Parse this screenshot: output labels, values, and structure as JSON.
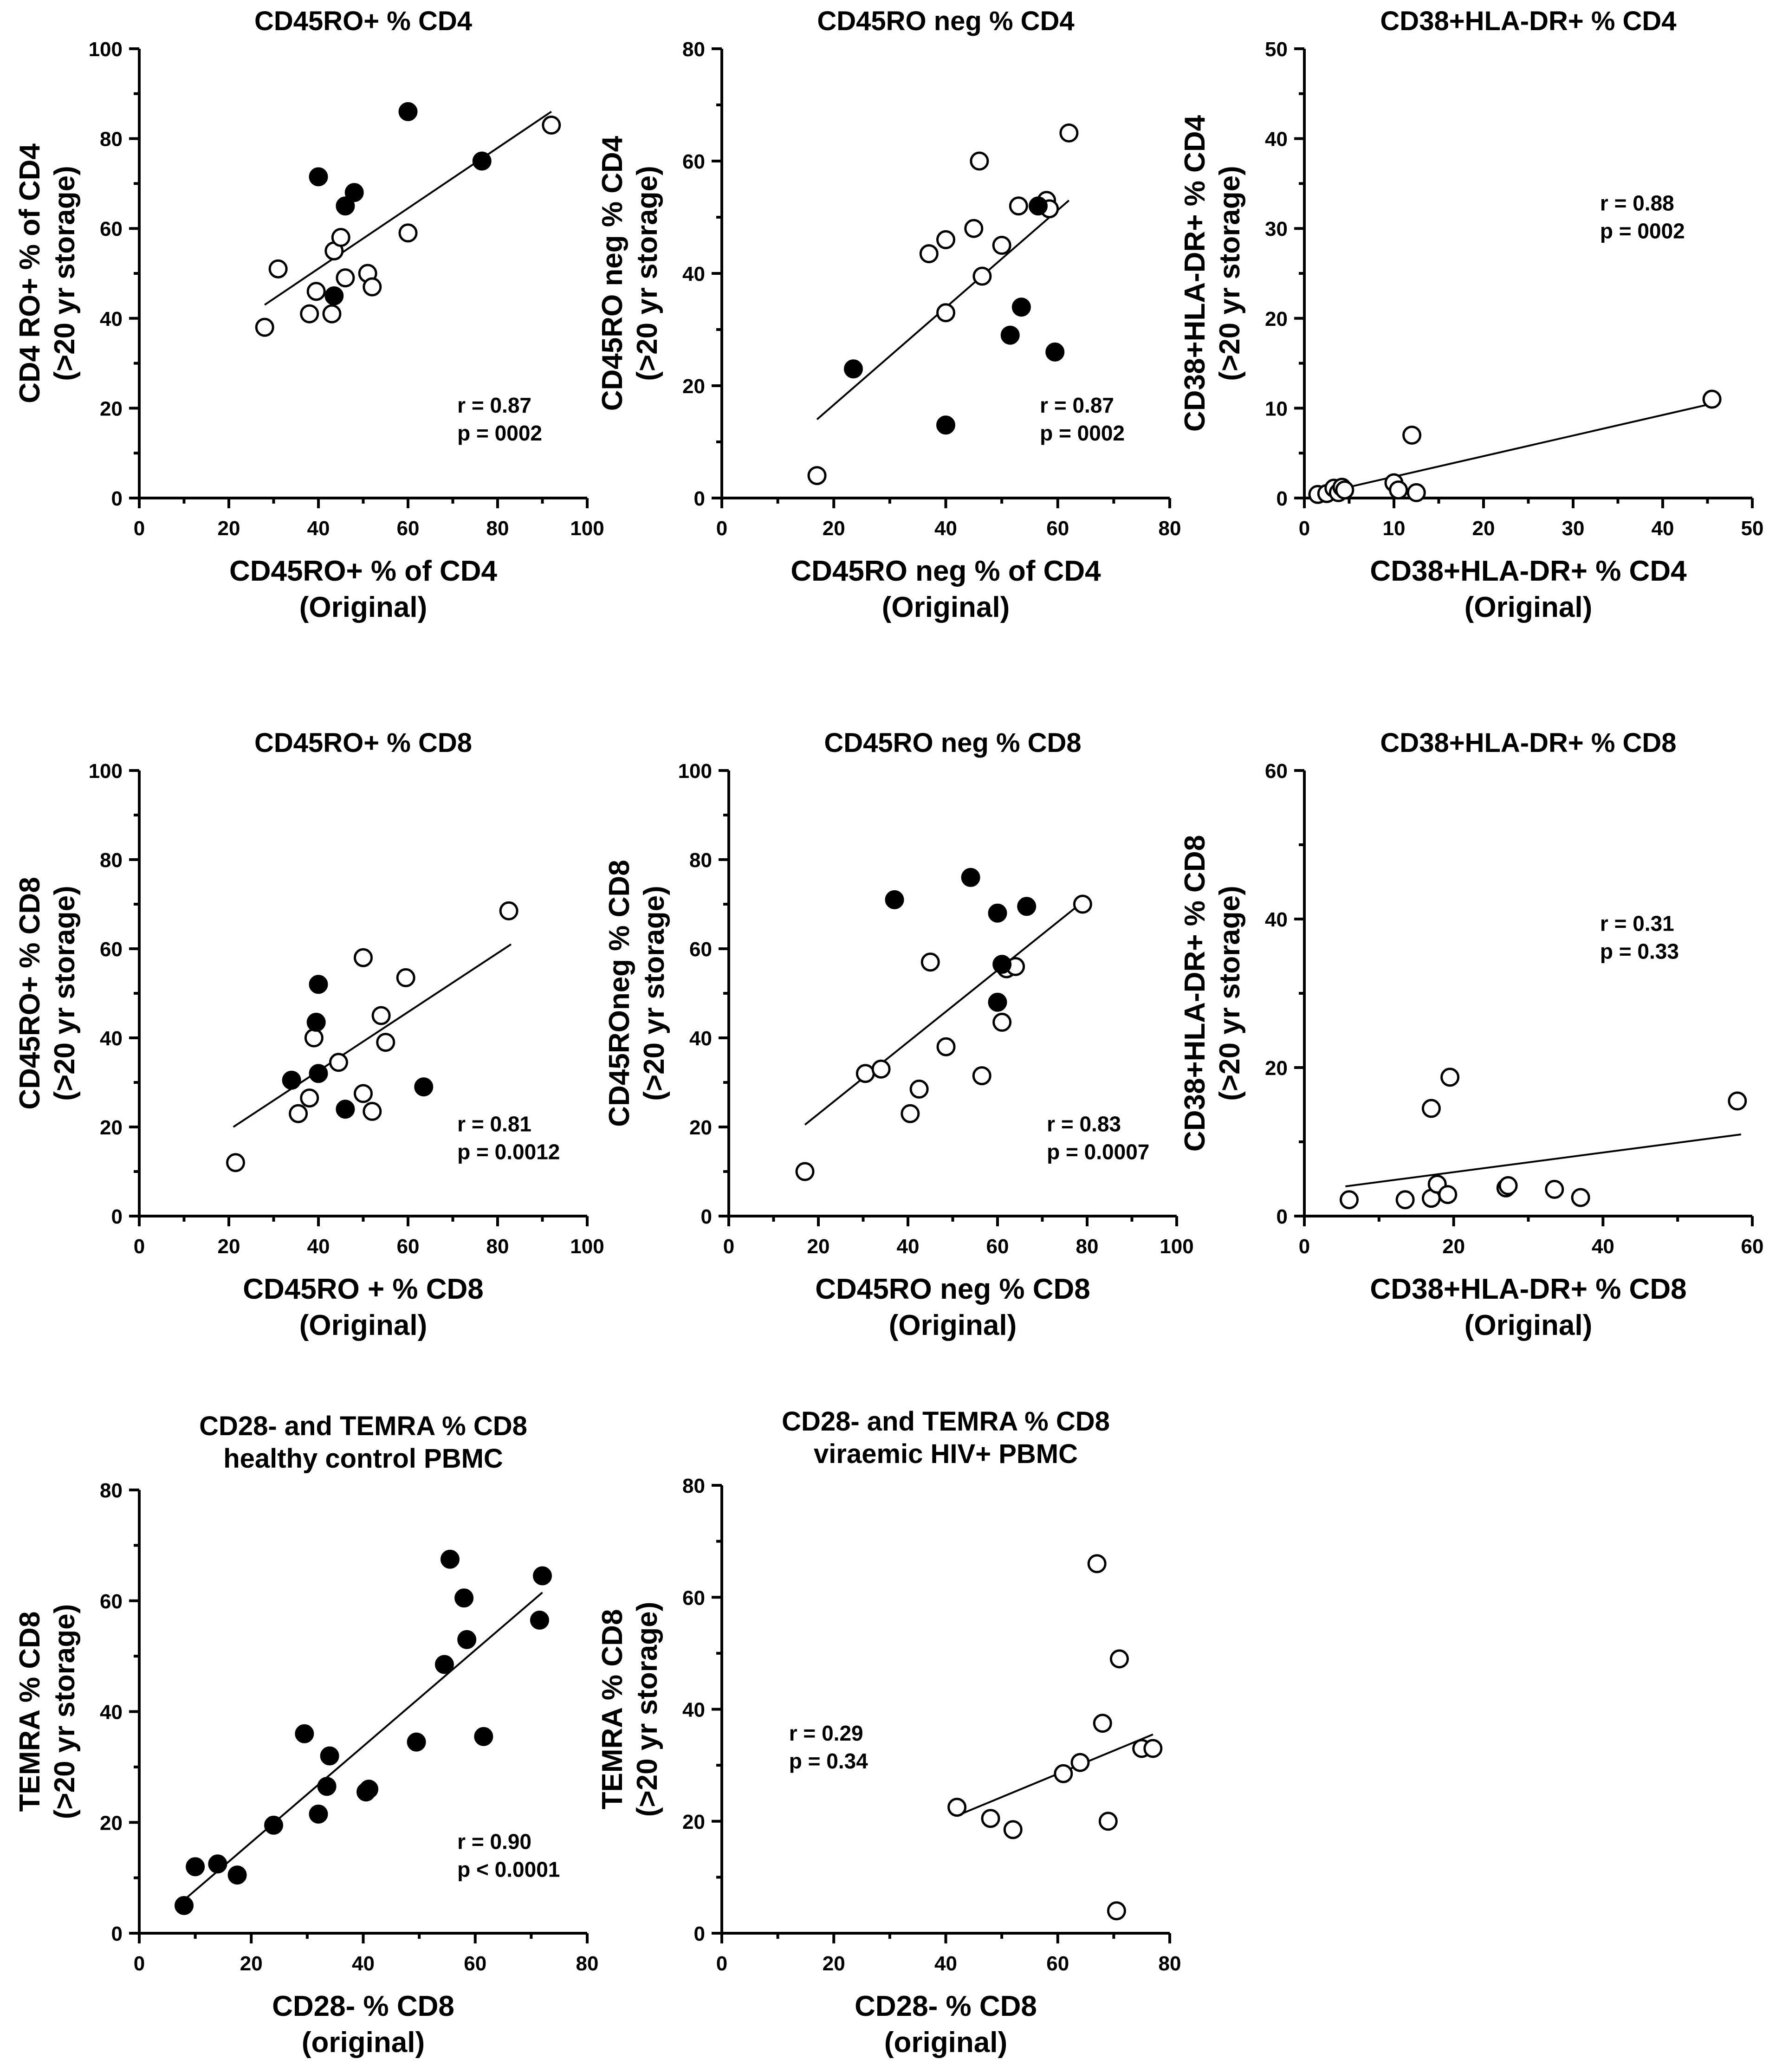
{
  "chart_data": [
    {
      "type": "scatter",
      "title": "CD45RO+ % CD4",
      "xlabel": [
        "CD45RO+ % of CD4",
        "(Original)"
      ],
      "ylabel": [
        "CD4 RO+ % of CD4",
        "(>20 yr storage)"
      ],
      "xlim": [
        0,
        100
      ],
      "ylim": [
        0,
        100
      ],
      "xticks": [
        0,
        20,
        40,
        60,
        80,
        100
      ],
      "yticks": [
        0,
        20,
        40,
        60,
        80,
        100
      ],
      "stats": [
        "r = 0.87",
        "p = 0002"
      ],
      "stats_position": "bottom-right",
      "fit": {
        "x": [
          28,
          92
        ],
        "y": [
          43,
          86
        ]
      },
      "points": [
        {
          "x": 28,
          "y": 38,
          "filled": false
        },
        {
          "x": 31,
          "y": 51,
          "filled": false
        },
        {
          "x": 38,
          "y": 41,
          "filled": false
        },
        {
          "x": 39.5,
          "y": 46,
          "filled": false
        },
        {
          "x": 43,
          "y": 41,
          "filled": false
        },
        {
          "x": 43.5,
          "y": 55,
          "filled": false
        },
        {
          "x": 45,
          "y": 58,
          "filled": false
        },
        {
          "x": 46,
          "y": 49,
          "filled": false
        },
        {
          "x": 51,
          "y": 50,
          "filled": false
        },
        {
          "x": 52,
          "y": 47,
          "filled": false
        },
        {
          "x": 60,
          "y": 59,
          "filled": false
        },
        {
          "x": 92,
          "y": 83,
          "filled": false
        },
        {
          "x": 40,
          "y": 71.5,
          "filled": true
        },
        {
          "x": 43.5,
          "y": 45,
          "filled": true
        },
        {
          "x": 46,
          "y": 65,
          "filled": true
        },
        {
          "x": 48,
          "y": 68,
          "filled": true
        },
        {
          "x": 60,
          "y": 86,
          "filled": true
        },
        {
          "x": 76.5,
          "y": 75,
          "filled": true
        }
      ]
    },
    {
      "type": "scatter",
      "title": "CD45RO neg % CD4",
      "xlabel": [
        "CD45RO neg % of CD4",
        "(Original)"
      ],
      "ylabel": [
        "CD45RO neg % CD4",
        "(>20 yr storage)"
      ],
      "xlim": [
        0,
        80
      ],
      "ylim": [
        0,
        80
      ],
      "xticks": [
        0,
        20,
        40,
        60,
        80
      ],
      "yticks": [
        0,
        20,
        40,
        60,
        80
      ],
      "stats": [
        "r = 0.87",
        "p = 0002"
      ],
      "stats_position": "bottom-right",
      "fit": {
        "x": [
          17,
          62
        ],
        "y": [
          14,
          53
        ]
      },
      "points": [
        {
          "x": 17,
          "y": 4,
          "filled": false
        },
        {
          "x": 37,
          "y": 43.5,
          "filled": false
        },
        {
          "x": 40,
          "y": 33,
          "filled": false
        },
        {
          "x": 40,
          "y": 46,
          "filled": false
        },
        {
          "x": 45,
          "y": 48,
          "filled": false
        },
        {
          "x": 46,
          "y": 60,
          "filled": false
        },
        {
          "x": 46.5,
          "y": 39.5,
          "filled": false
        },
        {
          "x": 50,
          "y": 45,
          "filled": false
        },
        {
          "x": 53,
          "y": 52,
          "filled": false
        },
        {
          "x": 58,
          "y": 53,
          "filled": false
        },
        {
          "x": 58.5,
          "y": 51.5,
          "filled": false
        },
        {
          "x": 62,
          "y": 65,
          "filled": false
        },
        {
          "x": 23.5,
          "y": 23,
          "filled": true
        },
        {
          "x": 40,
          "y": 13,
          "filled": true
        },
        {
          "x": 51.5,
          "y": 29,
          "filled": true
        },
        {
          "x": 53.5,
          "y": 34,
          "filled": true
        },
        {
          "x": 56.5,
          "y": 52,
          "filled": true
        },
        {
          "x": 59.5,
          "y": 26,
          "filled": true
        }
      ]
    },
    {
      "type": "scatter",
      "title": "CD38+HLA-DR+ % CD4",
      "xlabel": [
        "CD38+HLA-DR+ % CD4",
        "(Original)"
      ],
      "ylabel": [
        "CD38+HLA-DR+ % CD4",
        "(>20 yr storage)"
      ],
      "xlim": [
        0,
        50
      ],
      "ylim": [
        0,
        50
      ],
      "xticks": [
        0,
        10,
        20,
        30,
        40,
        50
      ],
      "yticks": [
        0,
        10,
        20,
        30,
        40,
        50
      ],
      "stats": [
        "r = 0.88",
        "p = 0002"
      ],
      "stats_position": "top-right",
      "fit": {
        "x": [
          0.5,
          45.5
        ],
        "y": [
          0.2,
          10.5
        ]
      },
      "points": [
        {
          "x": 1.5,
          "y": 0.4,
          "filled": false
        },
        {
          "x": 2.5,
          "y": 0.5,
          "filled": false
        },
        {
          "x": 3.3,
          "y": 1.1,
          "filled": false
        },
        {
          "x": 3.8,
          "y": 0.6,
          "filled": false
        },
        {
          "x": 4.2,
          "y": 1.2,
          "filled": false
        },
        {
          "x": 4.5,
          "y": 0.9,
          "filled": false
        },
        {
          "x": 10,
          "y": 1.7,
          "filled": false
        },
        {
          "x": 10.5,
          "y": 0.9,
          "filled": false
        },
        {
          "x": 12,
          "y": 7,
          "filled": false
        },
        {
          "x": 12.5,
          "y": 0.6,
          "filled": false
        },
        {
          "x": 45.5,
          "y": 11,
          "filled": false
        }
      ]
    },
    {
      "type": "scatter",
      "title": "CD45RO+ % CD8",
      "xlabel": [
        "CD45RO + % CD8",
        "(Original)"
      ],
      "ylabel": [
        "CD45RO+ % CD8",
        "(>20 yr storage)"
      ],
      "xlim": [
        0,
        100
      ],
      "ylim": [
        0,
        100
      ],
      "xticks": [
        0,
        20,
        40,
        60,
        80,
        100
      ],
      "yticks": [
        0,
        20,
        40,
        60,
        80,
        100
      ],
      "stats": [
        "r = 0.81",
        "p = 0.0012"
      ],
      "stats_position": "bottom-right",
      "fit": {
        "x": [
          21,
          83
        ],
        "y": [
          20,
          61
        ]
      },
      "points": [
        {
          "x": 21.5,
          "y": 12,
          "filled": false
        },
        {
          "x": 35.5,
          "y": 23,
          "filled": false
        },
        {
          "x": 38,
          "y": 26.5,
          "filled": false
        },
        {
          "x": 39,
          "y": 40,
          "filled": false
        },
        {
          "x": 44.5,
          "y": 34.5,
          "filled": false
        },
        {
          "x": 50,
          "y": 58,
          "filled": false
        },
        {
          "x": 50,
          "y": 27.5,
          "filled": false
        },
        {
          "x": 52,
          "y": 23.5,
          "filled": false
        },
        {
          "x": 54,
          "y": 45,
          "filled": false
        },
        {
          "x": 55,
          "y": 39,
          "filled": false
        },
        {
          "x": 59.5,
          "y": 53.5,
          "filled": false
        },
        {
          "x": 82.5,
          "y": 68.5,
          "filled": false
        },
        {
          "x": 34,
          "y": 30.5,
          "filled": true
        },
        {
          "x": 39.5,
          "y": 43.5,
          "filled": true
        },
        {
          "x": 40,
          "y": 52,
          "filled": true
        },
        {
          "x": 40,
          "y": 32,
          "filled": true
        },
        {
          "x": 46,
          "y": 24,
          "filled": true
        },
        {
          "x": 63.5,
          "y": 29,
          "filled": true
        }
      ]
    },
    {
      "type": "scatter",
      "title": "CD45RO neg % CD8",
      "xlabel": [
        "CD45RO neg % CD8",
        "(Original)"
      ],
      "ylabel": [
        "CD45ROneg % CD8",
        "(>20 yr storage)"
      ],
      "xlim": [
        0,
        100
      ],
      "ylim": [
        0,
        100
      ],
      "xticks": [
        0,
        20,
        40,
        60,
        80,
        100
      ],
      "yticks": [
        0,
        20,
        40,
        60,
        80,
        100
      ],
      "stats": [
        "r = 0.83",
        "p = 0.0007"
      ],
      "stats_position": "bottom-right",
      "fit": {
        "x": [
          17,
          79
        ],
        "y": [
          20.5,
          70.5
        ]
      },
      "points": [
        {
          "x": 17,
          "y": 10,
          "filled": false
        },
        {
          "x": 30.5,
          "y": 32,
          "filled": false
        },
        {
          "x": 34,
          "y": 33,
          "filled": false
        },
        {
          "x": 40.5,
          "y": 23,
          "filled": false
        },
        {
          "x": 42.5,
          "y": 28.5,
          "filled": false
        },
        {
          "x": 45,
          "y": 57,
          "filled": false
        },
        {
          "x": 48.5,
          "y": 38,
          "filled": false
        },
        {
          "x": 56.5,
          "y": 31.5,
          "filled": false
        },
        {
          "x": 61,
          "y": 43.5,
          "filled": false
        },
        {
          "x": 62,
          "y": 55.5,
          "filled": false
        },
        {
          "x": 64,
          "y": 56,
          "filled": false
        },
        {
          "x": 79,
          "y": 70,
          "filled": false
        },
        {
          "x": 37,
          "y": 71,
          "filled": true
        },
        {
          "x": 54,
          "y": 76,
          "filled": true
        },
        {
          "x": 60,
          "y": 68,
          "filled": true
        },
        {
          "x": 60,
          "y": 48,
          "filled": true
        },
        {
          "x": 61,
          "y": 56.5,
          "filled": true
        },
        {
          "x": 66.5,
          "y": 69.5,
          "filled": true
        }
      ]
    },
    {
      "type": "scatter",
      "title": "CD38+HLA-DR+ % CD8",
      "xlabel": [
        "CD38+HLA-DR+ % CD8",
        "(Original)"
      ],
      "ylabel": [
        "CD38+HLA-DR+ % CD8",
        "(>20 yr storage)"
      ],
      "xlim": [
        0,
        60
      ],
      "ylim": [
        0,
        60
      ],
      "xticks": [
        0,
        20,
        40,
        60
      ],
      "yticks": [
        0,
        20,
        40,
        60
      ],
      "stats": [
        "r = 0.31",
        "p = 0.33"
      ],
      "stats_position": "top-right",
      "fit": {
        "x": [
          5.5,
          58.5
        ],
        "y": [
          4,
          11
        ]
      },
      "points": [
        {
          "x": 6,
          "y": 2.2,
          "filled": false
        },
        {
          "x": 13.5,
          "y": 2.2,
          "filled": false
        },
        {
          "x": 17,
          "y": 2.4,
          "filled": false
        },
        {
          "x": 17,
          "y": 14.5,
          "filled": false
        },
        {
          "x": 17.8,
          "y": 4.3,
          "filled": false
        },
        {
          "x": 19.2,
          "y": 2.9,
          "filled": false
        },
        {
          "x": 19.5,
          "y": 18.7,
          "filled": false
        },
        {
          "x": 27,
          "y": 3.8,
          "filled": false
        },
        {
          "x": 27.3,
          "y": 4.1,
          "filled": false
        },
        {
          "x": 33.5,
          "y": 3.6,
          "filled": false
        },
        {
          "x": 37,
          "y": 2.5,
          "filled": false
        },
        {
          "x": 58,
          "y": 15.5,
          "filled": false
        }
      ]
    },
    {
      "type": "scatter",
      "title": "CD28- and TEMRA % CD8",
      "subtitle": "healthy control PBMC",
      "xlabel": [
        "CD28- % CD8",
        "(original)"
      ],
      "ylabel": [
        "TEMRA % CD8",
        "(>20 yr storage)"
      ],
      "xlim": [
        0,
        80
      ],
      "ylim": [
        0,
        80
      ],
      "xticks": [
        0,
        20,
        40,
        60,
        80
      ],
      "yticks": [
        0,
        20,
        40,
        60,
        80
      ],
      "stats": [
        "r = 0.90",
        "p < 0.0001"
      ],
      "stats_position": "bottom-right",
      "fit": {
        "x": [
          8,
          72
        ],
        "y": [
          6,
          61.5
        ]
      },
      "points": [
        {
          "x": 8,
          "y": 5,
          "filled": true
        },
        {
          "x": 10,
          "y": 12,
          "filled": true
        },
        {
          "x": 14,
          "y": 12.5,
          "filled": true
        },
        {
          "x": 17.5,
          "y": 10.5,
          "filled": true
        },
        {
          "x": 24,
          "y": 19.5,
          "filled": true
        },
        {
          "x": 29.5,
          "y": 36,
          "filled": true
        },
        {
          "x": 32,
          "y": 21.5,
          "filled": true
        },
        {
          "x": 33.5,
          "y": 26.5,
          "filled": true
        },
        {
          "x": 34,
          "y": 32,
          "filled": true
        },
        {
          "x": 40.5,
          "y": 25.5,
          "filled": true
        },
        {
          "x": 41,
          "y": 26,
          "filled": true
        },
        {
          "x": 49.5,
          "y": 34.5,
          "filled": true
        },
        {
          "x": 54.5,
          "y": 48.5,
          "filled": true
        },
        {
          "x": 55.5,
          "y": 67.5,
          "filled": true
        },
        {
          "x": 58,
          "y": 60.5,
          "filled": true
        },
        {
          "x": 58.5,
          "y": 53,
          "filled": true
        },
        {
          "x": 61.5,
          "y": 35.5,
          "filled": true
        },
        {
          "x": 71.5,
          "y": 56.5,
          "filled": true
        },
        {
          "x": 72,
          "y": 64.5,
          "filled": true
        }
      ]
    },
    {
      "type": "scatter",
      "title": "CD28- and TEMRA % CD8",
      "subtitle": "viraemic HIV+ PBMC",
      "xlabel": [
        "CD28- % CD8",
        "(original)"
      ],
      "ylabel": [
        "TEMRA % CD8",
        "(>20 yr storage)"
      ],
      "xlim": [
        0,
        80
      ],
      "ylim": [
        0,
        80
      ],
      "xticks": [
        0,
        20,
        40,
        60,
        80
      ],
      "yticks": [
        0,
        20,
        40,
        60,
        80
      ],
      "stats": [
        "r = 0.29",
        "p = 0.34"
      ],
      "stats_position": "middle-left",
      "fit": {
        "x": [
          42,
          77
        ],
        "y": [
          21,
          35.5
        ]
      },
      "points": [
        {
          "x": 42,
          "y": 22.5,
          "filled": false
        },
        {
          "x": 48,
          "y": 20.5,
          "filled": false
        },
        {
          "x": 52,
          "y": 18.5,
          "filled": false
        },
        {
          "x": 61,
          "y": 28.5,
          "filled": false
        },
        {
          "x": 64,
          "y": 30.5,
          "filled": false
        },
        {
          "x": 67,
          "y": 66,
          "filled": false
        },
        {
          "x": 68,
          "y": 37.5,
          "filled": false
        },
        {
          "x": 69,
          "y": 20,
          "filled": false
        },
        {
          "x": 70.5,
          "y": 4,
          "filled": false
        },
        {
          "x": 71,
          "y": 49,
          "filled": false
        },
        {
          "x": 75,
          "y": 33,
          "filled": false
        },
        {
          "x": 77,
          "y": 33,
          "filled": false
        }
      ]
    }
  ]
}
